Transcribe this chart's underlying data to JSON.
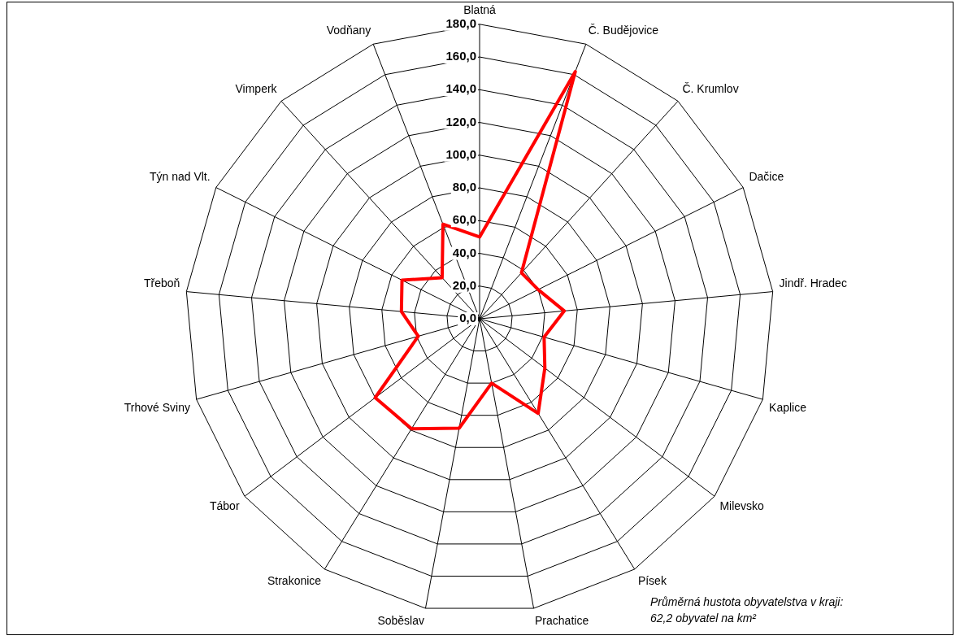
{
  "chart_data": {
    "type": "radar",
    "categories": [
      "Blatná",
      "Č. Budějovice",
      "Č. Krumlov",
      "Dačice",
      "Jindř. Hradec",
      "Kaplice",
      "Milevsko",
      "Písek",
      "Prachatice",
      "Soběslav",
      "Strakonice",
      "Tábor",
      "Trhové Sviny",
      "Třeboň",
      "Týn nad Vlt.",
      "Vimperk",
      "Vodňany"
    ],
    "series": [
      {
        "color": "#ff0000",
        "values": [
          50,
          162,
          38,
          40,
          52,
          41,
          50,
          68,
          40,
          68,
          79,
          80,
          39,
          48,
          53,
          34,
          62
        ]
      }
    ],
    "ylim": [
      0,
      180
    ],
    "yticks": [
      {
        "value": 0,
        "label": "0,0"
      },
      {
        "value": 20,
        "label": "20,0"
      },
      {
        "value": 40,
        "label": "40,0"
      },
      {
        "value": 60,
        "label": "60,0"
      },
      {
        "value": 80,
        "label": "80,0"
      },
      {
        "value": 100,
        "label": "100,0"
      },
      {
        "value": 120,
        "label": "120,0"
      },
      {
        "value": 140,
        "label": "140,0"
      },
      {
        "value": 160,
        "label": "160,0"
      },
      {
        "value": 180,
        "label": "180,0"
      }
    ],
    "grid": true,
    "marker": "none",
    "line_style": "solid",
    "annotations": [
      "Průměrná hustota obyvatelstva v kraji:",
      "62,2 obyvatel na km²"
    ]
  }
}
